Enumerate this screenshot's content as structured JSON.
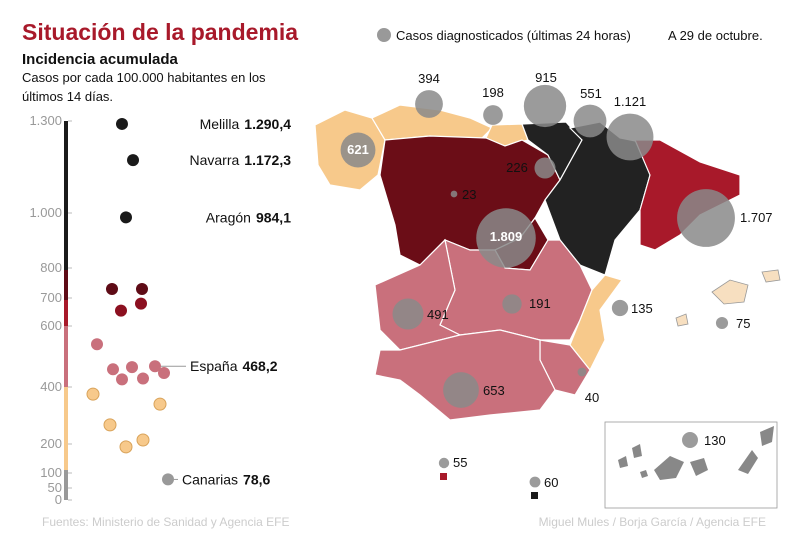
{
  "header": {
    "title": "Situación de la pandemia",
    "subtitle": "Incidencia acumulada",
    "description": [
      "Casos por cada 100.000 habitantes en los",
      "últimos 14 días."
    ],
    "legend_label": "Casos diagnosticados (últimas 24 horas)",
    "date": "A 29 de octubre."
  },
  "scale": {
    "yticks": [
      {
        "value": 1300,
        "label": "1.300"
      },
      {
        "value": 1000,
        "label": "1.000"
      },
      800,
      700,
      600,
      400,
      200,
      100,
      50,
      0
    ],
    "callouts": [
      {
        "name": "Melilla",
        "value": 1290.4,
        "label": "1.290,4",
        "color": "#1a1a1a"
      },
      {
        "name": "Navarra",
        "value": 1172.3,
        "label": "1.172,3",
        "color": "#1a1a1a"
      },
      {
        "name": "Aragón",
        "value": 984.1,
        "label": "984,1",
        "color": "#1a1a1a"
      },
      {
        "name": "España",
        "value": 468.2,
        "label": "468,2",
        "color": "#c9707c"
      },
      {
        "name": "Canarias",
        "value": 78.6,
        "label": "78,6",
        "color": "#999999"
      }
    ],
    "points": [
      {
        "value": 730,
        "color": "#5e0b16"
      },
      {
        "value": 730,
        "color": "#5e0b16"
      },
      {
        "value": 680,
        "color": "#8c1020"
      },
      {
        "value": 655,
        "color": "#8c1020"
      },
      {
        "value": 540,
        "color": "#c9707c"
      },
      {
        "value": 458,
        "color": "#c9707c"
      },
      {
        "value": 465,
        "color": "#c9707c"
      },
      {
        "value": 425,
        "color": "#c9707c"
      },
      {
        "value": 428,
        "color": "#c9707c"
      },
      {
        "value": 446,
        "color": "#c9707c"
      },
      {
        "value": 375,
        "color": "#f7c98b"
      },
      {
        "value": 340,
        "color": "#f7c98b"
      },
      {
        "value": 267,
        "color": "#f7c98b"
      },
      {
        "value": 214,
        "color": "#f7c98b"
      },
      {
        "value": 190,
        "color": "#f7c98b"
      }
    ]
  },
  "map": {
    "bubble_color": "#8a8a8a",
    "bubbles": [
      {
        "value": 394
      },
      {
        "value": 198
      },
      {
        "value": 915
      },
      {
        "value": 551
      },
      {
        "value": 1121,
        "label": "1.121"
      },
      {
        "value": 621
      },
      {
        "value": 226
      },
      {
        "value": 23
      },
      {
        "value": 1809,
        "label": "1.809"
      },
      {
        "value": 1707,
        "label": "1.707"
      },
      {
        "value": 491
      },
      {
        "value": 191
      },
      {
        "value": 135
      },
      {
        "value": 75
      },
      {
        "value": 653
      },
      {
        "value": 40
      },
      {
        "value": 55
      },
      {
        "value": 60
      },
      {
        "value": 130
      }
    ]
  },
  "footer": {
    "source": "Fuentes: Ministerio de Sanidad y Agencia EFE",
    "credits": "Miguel Mules / Borja García / Agencia EFE"
  }
}
